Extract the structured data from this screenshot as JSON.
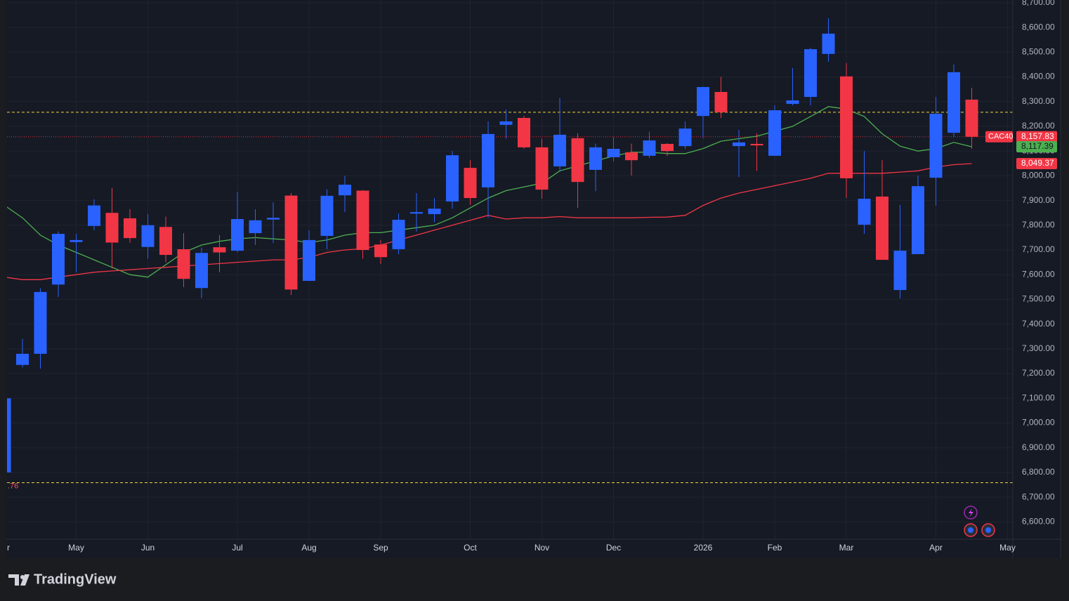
{
  "chart_data": {
    "type": "candlestick",
    "symbol": "CAC40",
    "up_color": "#2962ff",
    "down_color": "#f23645",
    "grid": true,
    "categories": [
      "r",
      null,
      null,
      null,
      "May",
      null,
      null,
      null,
      "Jun",
      null,
      null,
      null,
      null,
      "Jul",
      null,
      null,
      null,
      "Aug",
      null,
      null,
      null,
      "Sep",
      null,
      null,
      null,
      null,
      "Oct",
      null,
      null,
      null,
      "Nov",
      null,
      null,
      null,
      "Dec",
      null,
      null,
      null,
      null,
      "2026",
      null,
      null,
      null,
      "Feb",
      null,
      null,
      null,
      "Mar",
      null,
      null,
      null,
      null,
      "Apr",
      null,
      null,
      null,
      "May"
    ],
    "candles": {
      "open": [
        6800,
        7235,
        7280,
        7560,
        7732,
        7797,
        7850,
        7828,
        7712,
        7793,
        7703,
        7546,
        7711,
        7697,
        7768,
        7823,
        7920,
        7575,
        7757,
        7921,
        7940,
        7722,
        7703,
        7847,
        7845,
        7896,
        8032,
        7953,
        8206,
        8234,
        8115,
        8038,
        8152,
        8024,
        8075,
        8095,
        8081,
        8129,
        8120,
        8242,
        8339,
        8120,
        8129,
        8081,
        8291,
        8319,
        8493,
        8402,
        7802,
        7916,
        7538,
        7683,
        7992,
        8174,
        8308,
        null,
        null
      ],
      "high": [
        7110,
        7340,
        7545,
        7775,
        7765,
        7905,
        7950,
        7865,
        7845,
        7835,
        7768,
        7710,
        7760,
        7935,
        7865,
        7893,
        7930,
        7780,
        7945,
        8000,
        7942,
        7740,
        7847,
        7930,
        7910,
        8100,
        8063,
        8220,
        8268,
        8242,
        8150,
        8315,
        8172,
        8130,
        8157,
        8130,
        8178,
        8132,
        8220,
        8360,
        8400,
        8186,
        8172,
        8285,
        8436,
        8518,
        8637,
        8456,
        8100,
        8063,
        7882,
        8001,
        8319,
        8450,
        8356,
        null,
        null
      ],
      "low": [
        6790,
        7225,
        7220,
        7510,
        7610,
        7780,
        7625,
        7730,
        7665,
        7650,
        7550,
        7505,
        7610,
        7690,
        7720,
        7728,
        7518,
        7575,
        7703,
        7853,
        7665,
        7643,
        7683,
        7775,
        7813,
        7867,
        7882,
        7830,
        8150,
        8109,
        7907,
        8015,
        7870,
        7938,
        8058,
        8001,
        8072,
        8080,
        8109,
        8152,
        8234,
        7995,
        8020,
        8081,
        8285,
        8285,
        8461,
        7910,
        7765,
        7660,
        7504,
        7683,
        7879,
        8157,
        8109,
        null,
        null
      ],
      "close": [
        7100,
        7280,
        7530,
        7765,
        7740,
        7880,
        7730,
        7748,
        7800,
        7680,
        7583,
        7688,
        7690,
        7825,
        7820,
        7830,
        7540,
        7740,
        7919,
        7964,
        7700,
        7671,
        7822,
        7853,
        7867,
        8083,
        7910,
        8169,
        8220,
        8115,
        7944,
        8166,
        7975,
        8115,
        8109,
        8063,
        8143,
        8100,
        8191,
        8359,
        8257,
        8135,
        8123,
        8265,
        8305,
        8512,
        8575,
        7990,
        7907,
        7660,
        7697,
        7958,
        8251,
        8419,
        8157.83,
        null,
        null
      ],
      "last_close_label": "8,157.83"
    },
    "lines": [
      {
        "color": "#4caf50",
        "label_text_color": "#131722",
        "values": [
          7880,
          7830,
          7760,
          7720,
          7690,
          7660,
          7630,
          7600,
          7590,
          7640,
          7690,
          7720,
          7735,
          7745,
          7750,
          7745,
          7740,
          7730,
          7740,
          7760,
          7770,
          7770,
          7780,
          7790,
          7800,
          7830,
          7870,
          7910,
          7940,
          7955,
          7970,
          8020,
          8040,
          8060,
          8080,
          8095,
          8095,
          8090,
          8090,
          8110,
          8140,
          8150,
          8160,
          8180,
          8200,
          8240,
          8280,
          8270,
          8240,
          8170,
          8120,
          8100,
          8110,
          8135,
          8117.39,
          null,
          null
        ],
        "last_label": "8,117.39"
      },
      {
        "color": "#f23645",
        "label_text_color": "#ffffff",
        "values": [
          7590,
          7580,
          7580,
          7590,
          7600,
          7610,
          7615,
          7620,
          7625,
          7630,
          7635,
          7640,
          7645,
          7650,
          7655,
          7660,
          7660,
          7670,
          7690,
          7700,
          7705,
          7720,
          7740,
          7760,
          7780,
          7800,
          7820,
          7840,
          7825,
          7830,
          7830,
          7835,
          7830,
          7830,
          7830,
          7830,
          7832,
          7833,
          7840,
          7880,
          7910,
          7930,
          7945,
          7960,
          7975,
          7990,
          8010,
          8010,
          8010,
          8010,
          8015,
          8020,
          8035,
          8045,
          8049.37,
          null,
          null
        ],
        "last_label": "8,049.37"
      }
    ],
    "hlines": [
      {
        "value": 8257,
        "color": "#f0d43a"
      },
      {
        "value": 6758.76,
        "color": "#f0d43a",
        "label": ".76"
      }
    ],
    "ylim": [
      6530,
      8711
    ],
    "yticks": [
      {
        "value": 6600,
        "label": "6,600.00"
      },
      {
        "value": 6700,
        "label": "6,700.00"
      },
      {
        "value": 6800,
        "label": "6,800.00"
      },
      {
        "value": 6900,
        "label": "6,900.00"
      },
      {
        "value": 7000,
        "label": "7,000.00"
      },
      {
        "value": 7100,
        "label": "7,100.00"
      },
      {
        "value": 7200,
        "label": "7,200.00"
      },
      {
        "value": 7300,
        "label": "7,300.00"
      },
      {
        "value": 7400,
        "label": "7,400.00"
      },
      {
        "value": 7500,
        "label": "7,500.00"
      },
      {
        "value": 7600,
        "label": "7,600.00"
      },
      {
        "value": 7700,
        "label": "7,700.00"
      },
      {
        "value": 7800,
        "label": "7,800.00"
      },
      {
        "value": 7900,
        "label": "7,900.00"
      },
      {
        "value": 8000,
        "label": "8,000.00"
      },
      {
        "value": 8100,
        "label": "8,100.00"
      },
      {
        "value": 8200,
        "label": "8,200.00"
      },
      {
        "value": 8300,
        "label": "8,300.00"
      },
      {
        "value": 8400,
        "label": "8,400.00"
      },
      {
        "value": 8500,
        "label": "8,500.00"
      },
      {
        "value": 8600,
        "label": "8,600.00"
      },
      {
        "value": 8700,
        "label": "8,700.00"
      }
    ]
  },
  "footer": {
    "brand": "TradingView"
  }
}
